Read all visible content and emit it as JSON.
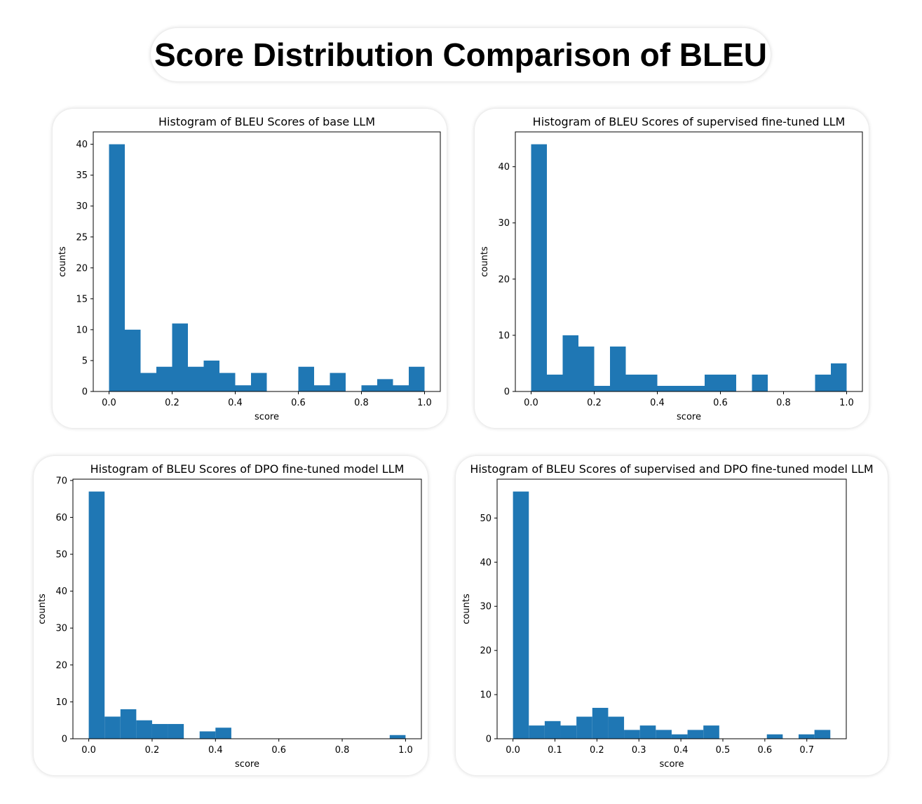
{
  "page": {
    "title": "Score Distribution Comparison of BLEU"
  },
  "chart_data": [
    {
      "type": "bar",
      "title": "Histogram of BLEU Scores of base LLM",
      "xlabel": "score",
      "ylabel": "counts",
      "color": "#1f77b4",
      "bin_width": 0.05,
      "bin_starts": [
        0.0,
        0.05,
        0.1,
        0.15,
        0.2,
        0.25,
        0.3,
        0.35,
        0.4,
        0.45,
        0.5,
        0.55,
        0.6,
        0.65,
        0.7,
        0.75,
        0.8,
        0.85,
        0.9,
        0.95
      ],
      "values": [
        40,
        10,
        3,
        4,
        11,
        4,
        5,
        3,
        1,
        3,
        0,
        0,
        4,
        1,
        3,
        0,
        1,
        2,
        1,
        4
      ],
      "xlim": [
        -0.05,
        1.05
      ],
      "ylim": [
        0,
        42
      ],
      "xticks": [
        0.0,
        0.2,
        0.4,
        0.6,
        0.8,
        1.0
      ],
      "xtick_labels": [
        "0.0",
        "0.2",
        "0.4",
        "0.6",
        "0.8",
        "1.0"
      ],
      "yticks": [
        0,
        5,
        10,
        15,
        20,
        25,
        30,
        35,
        40
      ],
      "ytick_labels": [
        "0",
        "5",
        "10",
        "15",
        "20",
        "25",
        "30",
        "35",
        "40"
      ]
    },
    {
      "type": "bar",
      "title": "Histogram of BLEU Scores of supervised fine-tuned LLM",
      "xlabel": "score",
      "ylabel": "counts",
      "color": "#1f77b4",
      "bin_width": 0.05,
      "bin_starts": [
        0.0,
        0.05,
        0.1,
        0.15,
        0.2,
        0.25,
        0.3,
        0.35,
        0.4,
        0.45,
        0.5,
        0.55,
        0.6,
        0.65,
        0.7,
        0.75,
        0.8,
        0.85,
        0.9,
        0.95
      ],
      "values": [
        44,
        3,
        10,
        8,
        1,
        8,
        3,
        3,
        1,
        1,
        1,
        3,
        3,
        0,
        3,
        0,
        0,
        0,
        3,
        5
      ],
      "xlim": [
        -0.05,
        1.05
      ],
      "ylim": [
        0,
        46.2
      ],
      "xticks": [
        0.0,
        0.2,
        0.4,
        0.6,
        0.8,
        1.0
      ],
      "xtick_labels": [
        "0.0",
        "0.2",
        "0.4",
        "0.6",
        "0.8",
        "1.0"
      ],
      "yticks": [
        0,
        10,
        20,
        30,
        40
      ],
      "ytick_labels": [
        "0",
        "10",
        "20",
        "30",
        "40"
      ]
    },
    {
      "type": "bar",
      "title": "Histogram of BLEU Scores of DPO fine-tuned model LLM",
      "xlabel": "score",
      "ylabel": "counts",
      "color": "#1f77b4",
      "bin_width": 0.05,
      "bin_starts": [
        0.0,
        0.05,
        0.1,
        0.15,
        0.2,
        0.25,
        0.3,
        0.35,
        0.4,
        0.45,
        0.5,
        0.55,
        0.6,
        0.65,
        0.7,
        0.75,
        0.8,
        0.85,
        0.9,
        0.95
      ],
      "values": [
        67,
        6,
        8,
        5,
        4,
        4,
        0,
        2,
        3,
        0,
        0,
        0,
        0,
        0,
        0,
        0,
        0,
        0,
        0,
        1
      ],
      "xlim": [
        -0.05,
        1.05
      ],
      "ylim": [
        0,
        70.35
      ],
      "xticks": [
        0.0,
        0.2,
        0.4,
        0.6,
        0.8,
        1.0
      ],
      "xtick_labels": [
        "0.0",
        "0.2",
        "0.4",
        "0.6",
        "0.8",
        "1.0"
      ],
      "yticks": [
        0,
        10,
        20,
        30,
        40,
        50,
        60,
        70
      ],
      "ytick_labels": [
        "0",
        "10",
        "20",
        "30",
        "40",
        "50",
        "60",
        "70"
      ]
    },
    {
      "type": "bar",
      "title": "Histogram of BLEU Scores of supervised and DPO fine-tuned model LLM",
      "xlabel": "score",
      "ylabel": "counts",
      "color": "#1f77b4",
      "bin_width": 0.0378,
      "bin_starts": [
        0.0,
        0.0378,
        0.0756,
        0.1134,
        0.1512,
        0.189,
        0.2268,
        0.2646,
        0.3024,
        0.3402,
        0.378,
        0.4158,
        0.4536,
        0.4914,
        0.5292,
        0.567,
        0.6048,
        0.6426,
        0.6804,
        0.7182
      ],
      "values": [
        56,
        3,
        4,
        3,
        5,
        7,
        5,
        2,
        3,
        2,
        1,
        2,
        3,
        0,
        0,
        0,
        1,
        0,
        1,
        2
      ],
      "xlim": [
        -0.0378,
        0.794
      ],
      "ylim": [
        0,
        58.8
      ],
      "xticks": [
        0.0,
        0.1,
        0.2,
        0.3,
        0.4,
        0.5,
        0.6,
        0.7
      ],
      "xtick_labels": [
        "0.0",
        "0.1",
        "0.2",
        "0.3",
        "0.4",
        "0.5",
        "0.6",
        "0.7"
      ],
      "yticks": [
        0,
        10,
        20,
        30,
        40,
        50
      ],
      "ytick_labels": [
        "0",
        "10",
        "20",
        "30",
        "40",
        "50"
      ]
    }
  ]
}
